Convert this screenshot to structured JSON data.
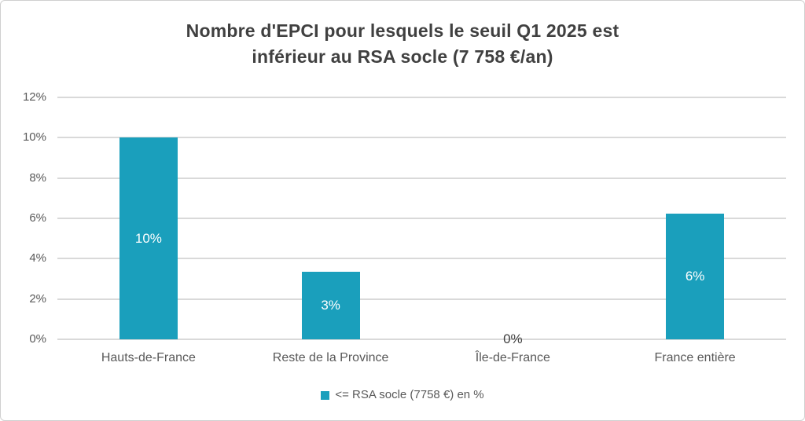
{
  "chart_data": {
    "type": "bar",
    "title": "Nombre d'EPCI pour lesquels le seuil Q1 2025 est inférieur au RSA socle (7 758 €/an)",
    "title_lines": [
      "Nombre d'EPCI pour lesquels le seuil Q1 2025 est",
      "inférieur au RSA socle (7 758 €/an)"
    ],
    "categories": [
      "Hauts-de-France",
      "Reste de la Province",
      "Île-de-France",
      "France entière"
    ],
    "values": [
      10,
      3.35,
      0,
      6.25
    ],
    "data_labels": [
      "10%",
      "3%",
      "0%",
      "6%"
    ],
    "yticks": [
      "0%",
      "2%",
      "4%",
      "6%",
      "8%",
      "10%",
      "12%"
    ],
    "ylim": [
      0,
      12
    ],
    "grid": true,
    "legend": {
      "label": "<= RSA socle (7758 €) en %",
      "position": "bottom"
    },
    "bar_color": "#1A9FBC",
    "label_color_inside": "#FFFFFF",
    "label_color_outside": "#404040"
  },
  "colors": {
    "background": "#FFFFFF",
    "frame_border": "#CFCFCF",
    "gridline": "#D9D9D9",
    "axis_text": "#595959",
    "title_text": "#404040"
  }
}
